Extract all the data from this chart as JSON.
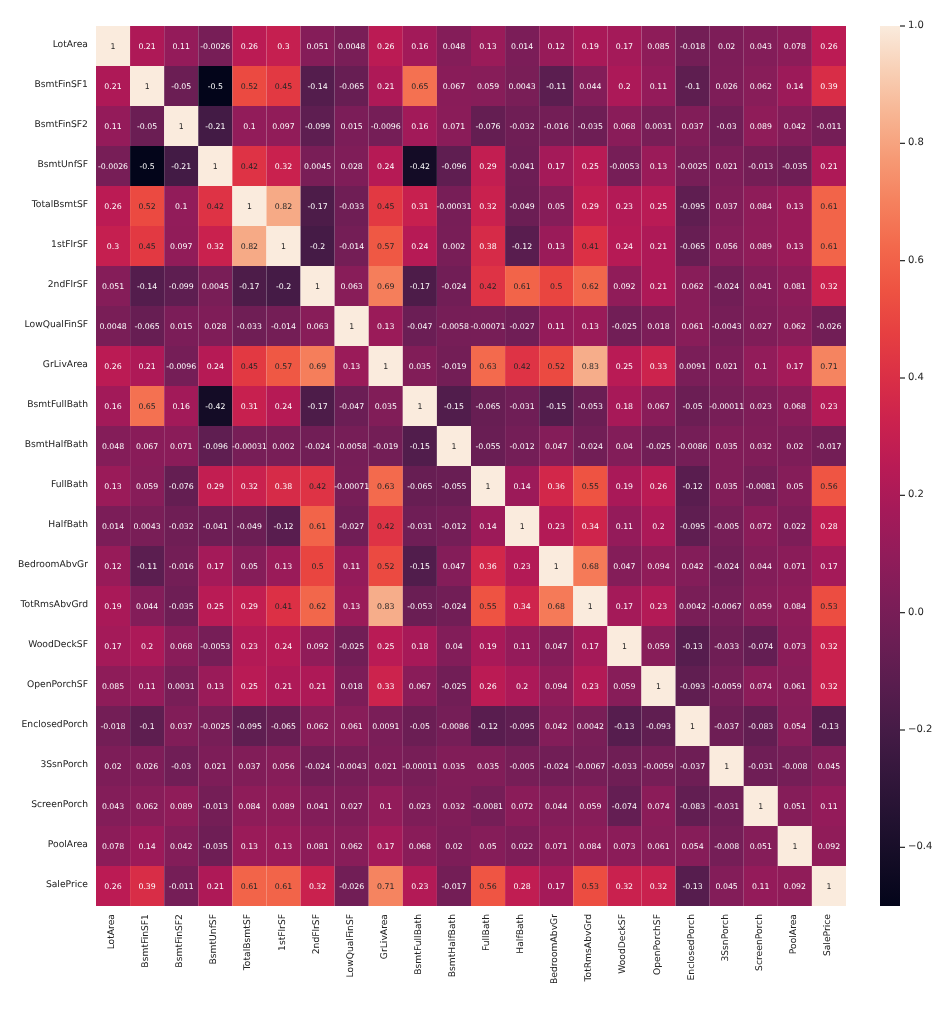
{
  "chart_data": {
    "type": "heatmap",
    "categories": [
      "LotArea",
      "BsmtFinSF1",
      "BsmtFinSF2",
      "BsmtUnfSF",
      "TotalBsmtSF",
      "1stFlrSF",
      "2ndFlrSF",
      "LowQualFinSF",
      "GrLivArea",
      "BsmtFullBath",
      "BsmtHalfBath",
      "FullBath",
      "HalfBath",
      "BedroomAbvGr",
      "TotRmsAbvGrd",
      "WoodDeckSF",
      "OpenPorchSF",
      "EnclosedPorch",
      "3SsnPorch",
      "ScreenPorch",
      "PoolArea",
      "SalePrice"
    ],
    "y_categories": [
      "LotArea",
      "BsmtFinSF1",
      "BsmtFinSF2",
      "BsmtUnfSF",
      "TotalBsmtSF",
      "1stFlrSF",
      "2ndFlrSF",
      "LowQualFinSF",
      "GrLivArea",
      "BsmtFullBath",
      "BsmtHalfBath",
      "FullBath",
      "HalfBath",
      "BedroomAbvGr",
      "TotRmsAbvGrd",
      "WoodDeckSF",
      "OpenPorchSF",
      "EnclosedPorch",
      "3SsnPorch",
      "ScreenPorch",
      "PoolArea",
      "SalePrice"
    ],
    "cells": [
      [
        1,
        0.21,
        0.11,
        -0.0026,
        0.26,
        0.3,
        0.051,
        0.0048,
        0.26,
        0.16,
        0.048,
        0.13,
        0.014,
        0.12,
        0.19,
        0.17,
        0.085,
        -0.018,
        0.02,
        0.043,
        0.078,
        0.26
      ],
      [
        0.21,
        1,
        -0.05,
        -0.5,
        0.52,
        0.45,
        -0.14,
        -0.065,
        0.21,
        0.65,
        0.067,
        0.059,
        0.0043,
        -0.11,
        0.044,
        0.2,
        0.11,
        -0.1,
        0.026,
        0.062,
        0.14,
        0.39
      ],
      [
        0.11,
        -0.05,
        1,
        -0.21,
        0.1,
        0.097,
        -0.099,
        0.015,
        -0.0096,
        0.16,
        0.071,
        -0.076,
        -0.032,
        -0.016,
        -0.035,
        0.068,
        0.0031,
        0.037,
        -0.03,
        0.089,
        0.042,
        -0.011
      ],
      [
        -0.0026,
        -0.5,
        -0.21,
        1,
        0.42,
        0.32,
        0.0045,
        0.028,
        0.24,
        -0.42,
        -0.096,
        0.29,
        -0.041,
        0.17,
        0.25,
        -0.0053,
        0.13,
        -0.0025,
        0.021,
        -0.013,
        -0.035,
        0.21
      ],
      [
        0.26,
        0.52,
        0.1,
        0.42,
        1,
        0.82,
        -0.17,
        -0.033,
        0.45,
        0.31,
        -0.00031,
        0.32,
        -0.049,
        0.05,
        0.29,
        0.23,
        0.25,
        -0.095,
        0.037,
        0.084,
        0.13,
        0.61
      ],
      [
        0.3,
        0.45,
        0.097,
        0.32,
        0.82,
        1,
        -0.2,
        -0.014,
        0.57,
        0.24,
        0.002,
        0.38,
        -0.12,
        0.13,
        0.41,
        0.24,
        0.21,
        -0.065,
        0.056,
        0.089,
        0.13,
        0.61
      ],
      [
        0.051,
        -0.14,
        -0.099,
        0.0045,
        -0.17,
        -0.2,
        1,
        0.063,
        0.69,
        -0.17,
        -0.024,
        0.42,
        0.61,
        0.5,
        0.62,
        0.092,
        0.21,
        0.062,
        -0.024,
        0.041,
        0.081,
        0.32
      ],
      [
        0.0048,
        -0.065,
        0.015,
        0.028,
        -0.033,
        -0.014,
        0.063,
        1,
        0.13,
        -0.047,
        -0.0058,
        -0.00071,
        -0.027,
        0.11,
        0.13,
        -0.025,
        0.018,
        0.061,
        -0.0043,
        0.027,
        0.062,
        -0.026
      ],
      [
        0.26,
        0.21,
        -0.0096,
        0.24,
        0.45,
        0.57,
        0.69,
        0.13,
        1,
        0.035,
        -0.019,
        0.63,
        0.42,
        0.52,
        0.83,
        0.25,
        0.33,
        0.0091,
        0.021,
        0.1,
        0.17,
        0.71
      ],
      [
        0.16,
        0.65,
        0.16,
        -0.42,
        0.31,
        0.24,
        -0.17,
        -0.047,
        0.035,
        1,
        -0.15,
        -0.065,
        -0.031,
        -0.15,
        -0.053,
        0.18,
        0.067,
        -0.05,
        -0.00011,
        0.023,
        0.068,
        0.23
      ],
      [
        0.048,
        0.067,
        0.071,
        -0.096,
        -0.00031,
        0.002,
        -0.024,
        -0.0058,
        -0.019,
        -0.15,
        1,
        -0.055,
        -0.012,
        0.047,
        -0.024,
        0.04,
        -0.025,
        -0.0086,
        0.035,
        0.032,
        0.02,
        -0.017
      ],
      [
        0.13,
        0.059,
        -0.076,
        0.29,
        0.32,
        0.38,
        0.42,
        -0.00071,
        0.63,
        -0.065,
        -0.055,
        1,
        0.14,
        0.36,
        0.55,
        0.19,
        0.26,
        -0.12,
        0.035,
        -0.0081,
        0.05,
        0.56
      ],
      [
        0.014,
        0.0043,
        -0.032,
        -0.041,
        -0.049,
        -0.12,
        0.61,
        -0.027,
        0.42,
        -0.031,
        -0.012,
        0.14,
        1,
        0.23,
        0.34,
        0.11,
        0.2,
        -0.095,
        -0.005,
        0.072,
        0.022,
        0.28
      ],
      [
        0.12,
        -0.11,
        -0.016,
        0.17,
        0.05,
        0.13,
        0.5,
        0.11,
        0.52,
        -0.15,
        0.047,
        0.36,
        0.23,
        1,
        0.68,
        0.047,
        0.094,
        0.042,
        -0.024,
        0.044,
        0.071,
        0.17
      ],
      [
        0.19,
        0.044,
        -0.035,
        0.25,
        0.29,
        0.41,
        0.62,
        0.13,
        0.83,
        -0.053,
        -0.024,
        0.55,
        0.34,
        0.68,
        1,
        0.17,
        0.23,
        0.0042,
        -0.0067,
        0.059,
        0.084,
        0.53
      ],
      [
        0.17,
        0.2,
        0.068,
        -0.0053,
        0.23,
        0.24,
        0.092,
        -0.025,
        0.25,
        0.18,
        0.04,
        0.19,
        0.11,
        0.047,
        0.17,
        1,
        0.059,
        -0.13,
        -0.033,
        -0.074,
        0.073,
        0.32
      ],
      [
        0.085,
        0.11,
        0.0031,
        0.13,
        0.25,
        0.21,
        0.21,
        0.018,
        0.33,
        0.067,
        -0.025,
        0.26,
        0.2,
        0.094,
        0.23,
        0.059,
        1,
        -0.093,
        -0.0059,
        0.074,
        0.061,
        0.32
      ],
      [
        -0.018,
        -0.1,
        0.037,
        -0.0025,
        -0.095,
        -0.065,
        0.062,
        0.061,
        0.0091,
        -0.05,
        -0.0086,
        -0.12,
        -0.095,
        0.042,
        0.0042,
        -0.13,
        -0.093,
        1,
        -0.037,
        -0.083,
        0.054,
        -0.13
      ],
      [
        0.02,
        0.026,
        -0.03,
        0.021,
        0.037,
        0.056,
        -0.024,
        -0.0043,
        0.021,
        -0.00011,
        0.035,
        0.035,
        -0.005,
        -0.024,
        -0.0067,
        -0.033,
        -0.0059,
        -0.037,
        1,
        -0.031,
        -0.008,
        0.045
      ],
      [
        0.043,
        0.062,
        0.089,
        -0.013,
        0.084,
        0.089,
        0.041,
        0.027,
        0.1,
        0.023,
        0.032,
        -0.0081,
        0.072,
        0.044,
        0.059,
        -0.074,
        0.074,
        -0.083,
        -0.031,
        1,
        0.051,
        0.11
      ],
      [
        0.078,
        0.14,
        0.042,
        -0.035,
        0.13,
        0.13,
        0.081,
        0.062,
        0.17,
        0.068,
        0.02,
        0.05,
        0.022,
        0.071,
        0.084,
        0.073,
        0.061,
        0.054,
        -0.008,
        0.051,
        1,
        0.092
      ],
      [
        0.26,
        0.39,
        -0.011,
        0.21,
        0.61,
        0.61,
        0.32,
        -0.026,
        0.71,
        0.23,
        -0.017,
        0.56,
        0.28,
        0.17,
        0.53,
        0.32,
        0.32,
        -0.13,
        0.045,
        0.11,
        0.092,
        1
      ]
    ],
    "data_labels": true,
    "clim": [
      -0.5,
      1
    ],
    "cticks": [
      {
        "value": 1,
        "label": "1.0"
      },
      {
        "value": 0.8,
        "label": "0.8"
      },
      {
        "value": 0.6,
        "label": "0.6"
      },
      {
        "value": 0.4,
        "label": "0.4"
      },
      {
        "value": 0.2,
        "label": "0.2"
      },
      {
        "value": 0,
        "label": "0.0"
      },
      {
        "value": -0.2,
        "label": "−0.2"
      },
      {
        "value": -0.4,
        "label": "−0.4"
      }
    ]
  }
}
